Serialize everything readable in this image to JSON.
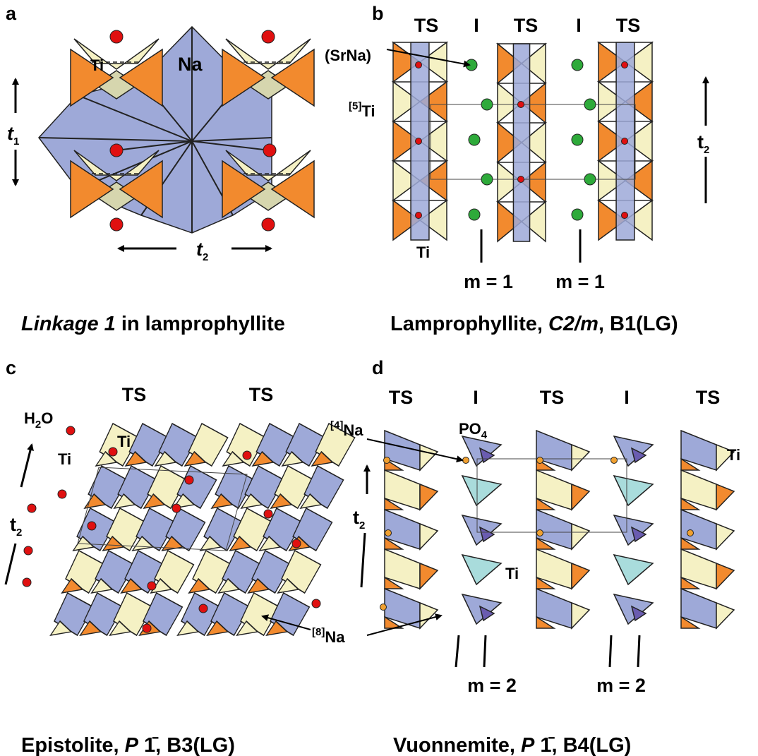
{
  "a": {
    "letter": "a",
    "ti": "Ti",
    "na": "Na",
    "t1": [
      "t",
      "1"
    ],
    "t2": [
      "t",
      "2"
    ],
    "caption": [
      "Linkage 1",
      " in lamprophyllite"
    ]
  },
  "b": {
    "letter": "b",
    "top": [
      "TS",
      "I",
      "TS",
      "I",
      "TS"
    ],
    "srna": "(SrNa)",
    "ti5": [
      "[5]",
      "Ti"
    ],
    "ti": "Ti",
    "t2": [
      "t",
      "2"
    ],
    "m": [
      "m = 1",
      "m = 1"
    ],
    "caption": [
      "Lamprophyllite, ",
      "C2/m",
      ", B1(LG)"
    ]
  },
  "c": {
    "letter": "c",
    "top": [
      "TS",
      "TS"
    ],
    "h2o": [
      "H",
      "2",
      "O"
    ],
    "ti": [
      "Ti",
      "Ti"
    ],
    "t2": [
      "t",
      "2"
    ],
    "na8": [
      "[8]",
      "Na"
    ],
    "caption": [
      "Epistolite, ",
      "P",
      " 1̄",
      ", B3(LG)"
    ]
  },
  "d": {
    "letter": "d",
    "top": [
      "TS",
      "I",
      "TS",
      "I",
      "TS"
    ],
    "na4": [
      "[4]",
      "Na"
    ],
    "po4": [
      "PO",
      "4"
    ],
    "ti": [
      "Ti",
      "Ti"
    ],
    "t2": [
      "t",
      "2"
    ],
    "m": [
      "m = 2",
      "m = 2"
    ],
    "caption": [
      "Vuonnemite, ",
      "P",
      " 1̄",
      ", B4(LG)"
    ]
  }
}
